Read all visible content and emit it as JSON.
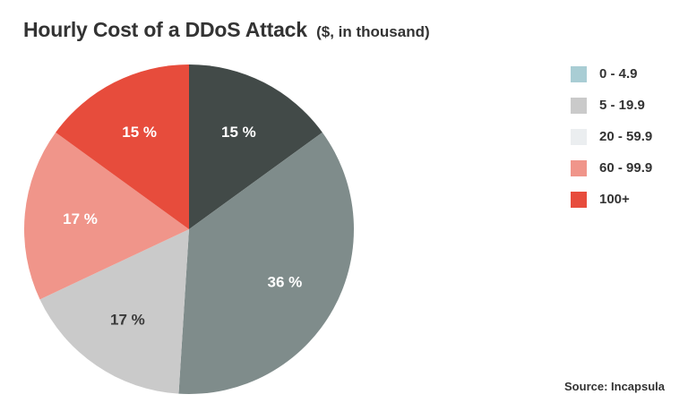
{
  "title": "Hourly Cost of a DDoS Attack",
  "subtitle": "($, in thousand)",
  "source": "Source: Incapsula",
  "chart_data": {
    "type": "pie",
    "title": "Hourly Cost of a DDoS Attack ($, in thousand)",
    "legend_position": "right",
    "start_angle": "12 o'clock",
    "direction": "clockwise",
    "categories": [
      "0 - 4.9",
      "5 - 19.9",
      "20 - 59.9",
      "60 - 99.9",
      "100+"
    ],
    "legend_colors": [
      "#a9cdd4",
      "#cacaca",
      "#ebeef0",
      "#f0958a",
      "#e74c3c"
    ],
    "slices": [
      {
        "label": "15 %",
        "value": 15,
        "color": "#424a48"
      },
      {
        "label": "36 %",
        "value": 36,
        "color": "#7f8c8b"
      },
      {
        "label": "17 %",
        "value": 17,
        "color": "#cacaca"
      },
      {
        "label": "17 %",
        "value": 17,
        "color": "#f0958a"
      },
      {
        "label": "15 %",
        "value": 15,
        "color": "#e74c3c"
      }
    ]
  }
}
